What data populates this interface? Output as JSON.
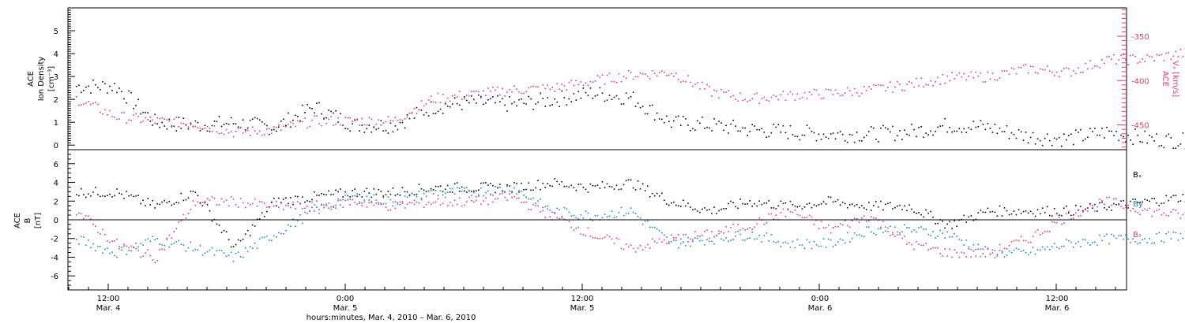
{
  "chart_data": [
    {
      "type": "scatter",
      "panel": "top",
      "ylabel_lines": [
        "ACE",
        "Ion Density",
        "[cm⁻³]"
      ],
      "y2label_lines": [
        "ACE",
        "Vₓ [km/s]"
      ],
      "ylim": [
        -0.2,
        6
      ],
      "y_ticks": [
        "0",
        "1",
        "2",
        "3",
        "4",
        "5"
      ],
      "y2lim": [
        -478,
        -318
      ],
      "y2_ticks": [
        "-350",
        "-400",
        "-450"
      ],
      "series": [
        {
          "color": "#000000",
          "axis": "left",
          "x_hours": [
            0,
            2,
            4,
            6,
            8,
            10,
            12,
            14,
            16,
            18,
            20,
            22,
            24,
            26,
            28,
            30,
            32,
            34,
            36,
            38,
            40,
            42,
            44,
            46,
            48,
            50,
            52,
            54,
            56,
            58
          ],
          "values": [
            2.6,
            2.6,
            1.0,
            0.9,
            1.0,
            0.8,
            1.7,
            0.9,
            0.9,
            1.7,
            1.9,
            1.8,
            2.0,
            2.3,
            2.1,
            1.0,
            0.9,
            0.7,
            0.6,
            0.5,
            0.5,
            0.6,
            0.9,
            0.8,
            0.4,
            0.3,
            0.6,
            0.3,
            0.2,
            0.2
          ]
        },
        {
          "color": "#e8386a",
          "axis": "right",
          "x_hours": [
            0,
            2,
            4,
            6,
            8,
            10,
            12,
            14,
            16,
            18,
            20,
            22,
            24,
            26,
            28,
            30,
            32,
            34,
            36,
            38,
            40,
            42,
            44,
            46,
            48,
            50,
            52,
            54,
            56,
            58
          ],
          "values": [
            -420,
            -440,
            -445,
            -448,
            -458,
            -455,
            -445,
            -445,
            -445,
            -420,
            -415,
            -410,
            -408,
            -400,
            -393,
            -390,
            -412,
            -420,
            -416,
            -414,
            -410,
            -404,
            -396,
            -395,
            -386,
            -390,
            -376,
            -375,
            -368,
            -363
          ]
        }
      ]
    },
    {
      "type": "scatter",
      "panel": "bottom",
      "ylabel_lines": [
        "ACE",
        "B",
        "[nT]"
      ],
      "ylim": [
        -7.5,
        7.5
      ],
      "y_ticks": [
        "6",
        "4",
        "2",
        "0",
        "-2",
        "-4",
        "-6"
      ],
      "legend": [
        "Bₓ",
        "By",
        "B₂"
      ],
      "series": [
        {
          "color": "#000000",
          "x_hours": [
            0,
            2,
            4,
            6,
            8,
            10,
            12,
            14,
            16,
            18,
            20,
            22,
            24,
            26,
            28,
            30,
            32,
            34,
            36,
            38,
            40,
            42,
            44,
            46,
            48,
            50,
            52,
            54,
            56,
            58
          ],
          "values": [
            3.0,
            3.0,
            1.5,
            3.0,
            -3.0,
            2.0,
            2.5,
            3.0,
            3.0,
            3.5,
            3.5,
            3.5,
            4.0,
            3.5,
            4.0,
            2.0,
            1.0,
            2.0,
            1.5,
            2.0,
            1.5,
            1.5,
            -0.5,
            1.0,
            1.0,
            1.0,
            1.5,
            2.0,
            2.5,
            2.8
          ]
        },
        {
          "color": "#1a7fd4",
          "x_hours": [
            0,
            2,
            4,
            6,
            8,
            10,
            12,
            14,
            16,
            18,
            20,
            22,
            24,
            26,
            28,
            30,
            32,
            34,
            36,
            38,
            40,
            42,
            44,
            46,
            48,
            50,
            52,
            54,
            56,
            58
          ],
          "values": [
            -2.0,
            -3.5,
            -2.0,
            -3.0,
            -4.0,
            -1.5,
            1.0,
            2.5,
            2.0,
            3.0,
            3.0,
            3.5,
            1.0,
            0.5,
            1.0,
            -2.5,
            -2.0,
            -1.5,
            -2.5,
            -2.5,
            -1.0,
            -1.0,
            -1.5,
            -3.5,
            -3.5,
            -2.5,
            -2.0,
            -2.0,
            -1.5,
            -1.0
          ]
        },
        {
          "color": "#e8386a",
          "x_hours": [
            0,
            2,
            4,
            6,
            8,
            10,
            12,
            14,
            16,
            18,
            20,
            22,
            24,
            26,
            28,
            30,
            32,
            34,
            36,
            38,
            40,
            42,
            44,
            46,
            48,
            50,
            52,
            54,
            56,
            58
          ],
          "values": [
            1.0,
            -2.5,
            -4.0,
            2.0,
            2.0,
            1.5,
            1.5,
            2.0,
            1.5,
            2.0,
            2.0,
            2.5,
            0.5,
            -1.5,
            -3.0,
            -2.0,
            -1.5,
            -0.5,
            1.0,
            -1.0,
            0.5,
            -2.5,
            -3.5,
            -3.5,
            -2.0,
            0.5,
            2.0,
            1.0,
            0.5,
            0.5
          ]
        }
      ]
    }
  ],
  "x_axis": {
    "ticks": [
      {
        "time": "12:00",
        "date": "Mar. 4"
      },
      {
        "time": "0:00",
        "date": "Mar. 5"
      },
      {
        "time": "12:00",
        "date": "Mar. 5"
      },
      {
        "time": "0:00",
        "date": "Mar. 6"
      },
      {
        "time": "12:00",
        "date": "Mar. 6"
      }
    ],
    "label": "hours:minutes, Mar. 4, 2010 – Mar. 6, 2010"
  }
}
